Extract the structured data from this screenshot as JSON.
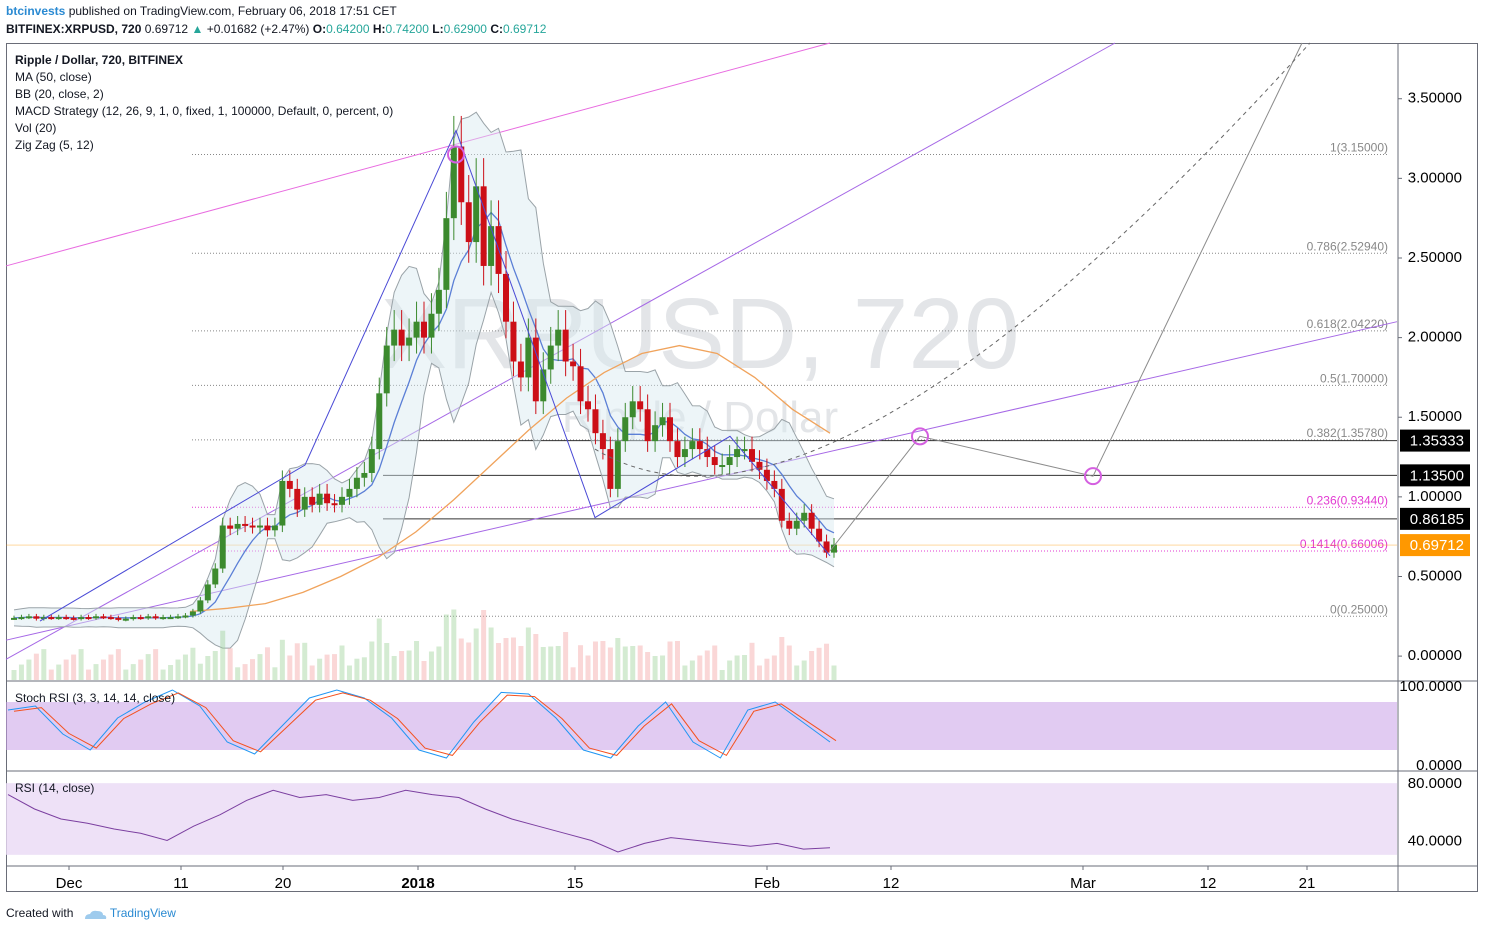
{
  "header": {
    "user": "btcinvests",
    "published": "published on TradingView.com, February 06, 2018 17:51 CET",
    "symbol": "BITFINEX:XRPUSD, 720",
    "price": "0.69712",
    "change": "+0.01682 (+2.47%)",
    "ohlc": {
      "o_label": "O:",
      "o": "0.64200",
      "h_label": "H:",
      "h": "0.74200",
      "l_label": "L:",
      "l": "0.62900",
      "c_label": "C:",
      "c": "0.69712"
    }
  },
  "legend": {
    "title": "Ripple / Dollar, 720, BITFINEX",
    "indicators": [
      "MA (50, close)",
      "BB (20, close, 2)",
      "MACD Strategy (12, 26, 9, 1, 0, fixed, 1, 100000, Default, 0, percent, 0)",
      "Vol (20)",
      "Zig Zag (5, 12)"
    ]
  },
  "watermark": {
    "main": "XRPUSD, 720",
    "sub": "Ripple / Dollar"
  },
  "panes": {
    "stoch_label": "Stoch RSI (3, 3, 14, 14, close)",
    "rsi_label": "RSI (14, close)"
  },
  "footer": {
    "created": "Created with",
    "brand": "TradingView"
  },
  "colors": {
    "up": "#3c8a2e",
    "down": "#cc0f17",
    "bb": "#9aa3a8",
    "ma": "#f0a35c",
    "basis": "#5b7fd6",
    "fib": "#888888",
    "fib_pink": "#e23ad2",
    "current": "#ff9800",
    "stoch_k": "#2196f3",
    "stoch_d": "#f4511e",
    "rsi": "#7b3fa0",
    "band": "#c9a0e8"
  },
  "chart_data": [
    {
      "type": "candlestick",
      "title": "Ripple / Dollar, 720, BITFINEX",
      "x_axis": {
        "type": "date",
        "tick_labels": [
          "Dec",
          "11",
          "20",
          "2018",
          "15",
          "Feb",
          "12",
          "Mar",
          "12",
          "21"
        ]
      },
      "y_axis": {
        "range": [
          -0.15,
          3.85
        ],
        "tick_labels": [
          "3.50000",
          "3.00000",
          "2.50000",
          "2.00000",
          "1.50000",
          "1.00000",
          "0.50000",
          "0.00000"
        ],
        "ticks": [
          3.5,
          3.0,
          2.5,
          2.0,
          1.5,
          1.0,
          0.5,
          0.0
        ]
      },
      "price_labels": [
        {
          "value": 1.35333,
          "text": "1.35333",
          "style": "black"
        },
        {
          "value": 1.135,
          "text": "1.13500",
          "style": "black"
        },
        {
          "value": 0.86185,
          "text": "0.86185",
          "style": "black"
        },
        {
          "value": 0.69712,
          "text": "0.69712",
          "style": "orange"
        }
      ],
      "fibonacci": [
        {
          "value": 3.15,
          "label": "1(3.15000)"
        },
        {
          "value": 2.5294,
          "label": "0.786(2.52940)"
        },
        {
          "value": 2.0422,
          "label": "0.618(2.04220)"
        },
        {
          "value": 1.7,
          "label": "0.5(1.70000)"
        },
        {
          "value": 1.3578,
          "label": "0.382(1.35780)"
        },
        {
          "value": 0.9344,
          "label": "0.236(0.93440)"
        },
        {
          "value": 0.66006,
          "label": "0.1414(0.66006)"
        },
        {
          "value": 0.25,
          "label": "0(0.25000)"
        }
      ],
      "series": [
        {
          "name": "XRPUSD",
          "closes": [
            0.24,
            0.245,
            0.25,
            0.235,
            0.245,
            0.24,
            0.245,
            0.24,
            0.235,
            0.245,
            0.24,
            0.25,
            0.245,
            0.24,
            0.23,
            0.235,
            0.245,
            0.24,
            0.25,
            0.24,
            0.245,
            0.245,
            0.25,
            0.255,
            0.28,
            0.35,
            0.45,
            0.55,
            0.82,
            0.8,
            0.83,
            0.82,
            0.81,
            0.82,
            0.79,
            0.82,
            1.1,
            1.05,
            0.92,
            1.0,
            0.95,
            1.02,
            0.96,
            0.95,
            1.0,
            1.05,
            1.12,
            1.15,
            1.3,
            1.65,
            1.95,
            2.05,
            1.95,
            2.0,
            2.1,
            2.0,
            2.15,
            2.3,
            2.75,
            3.2,
            2.85,
            2.6,
            2.95,
            2.45,
            2.7,
            2.4,
            2.1,
            1.85,
            1.75,
            2.0,
            1.6,
            1.8,
            1.95,
            2.05,
            1.85,
            1.82,
            1.6,
            1.55,
            1.4,
            1.3,
            1.05,
            1.35,
            1.5,
            1.6,
            1.55,
            1.35,
            1.45,
            1.5,
            1.35,
            1.25,
            1.3,
            1.35,
            1.3,
            1.25,
            1.2,
            1.2,
            1.25,
            1.3,
            1.3,
            1.22,
            1.17,
            1.1,
            1.05,
            0.85,
            0.8,
            0.85,
            0.9,
            0.8,
            0.72,
            0.65,
            0.7
          ]
        },
        {
          "name": "MA (50, close)",
          "values": [
            0.28,
            0.3,
            0.33,
            0.4,
            0.5,
            0.62,
            0.78,
            0.98,
            1.2,
            1.42,
            1.62,
            1.78,
            1.9,
            1.95,
            1.9,
            1.75,
            1.55,
            1.4
          ]
        },
        {
          "name": "Stoch RSI",
          "k": [
            70,
            75,
            40,
            20,
            60,
            80,
            95,
            75,
            30,
            15,
            50,
            85,
            95,
            85,
            60,
            20,
            10,
            55,
            92,
            90,
            60,
            20,
            10,
            50,
            80,
            30,
            10,
            70,
            80,
            55,
            30
          ]
        },
        {
          "name": "RSI (14, close)",
          "values": [
            72,
            62,
            55,
            52,
            48,
            45,
            40,
            50,
            58,
            68,
            75,
            70,
            72,
            68,
            70,
            75,
            72,
            70,
            62,
            55,
            50,
            45,
            40,
            32,
            38,
            42,
            40,
            38,
            36,
            38,
            34,
            35
          ]
        }
      ]
    }
  ]
}
